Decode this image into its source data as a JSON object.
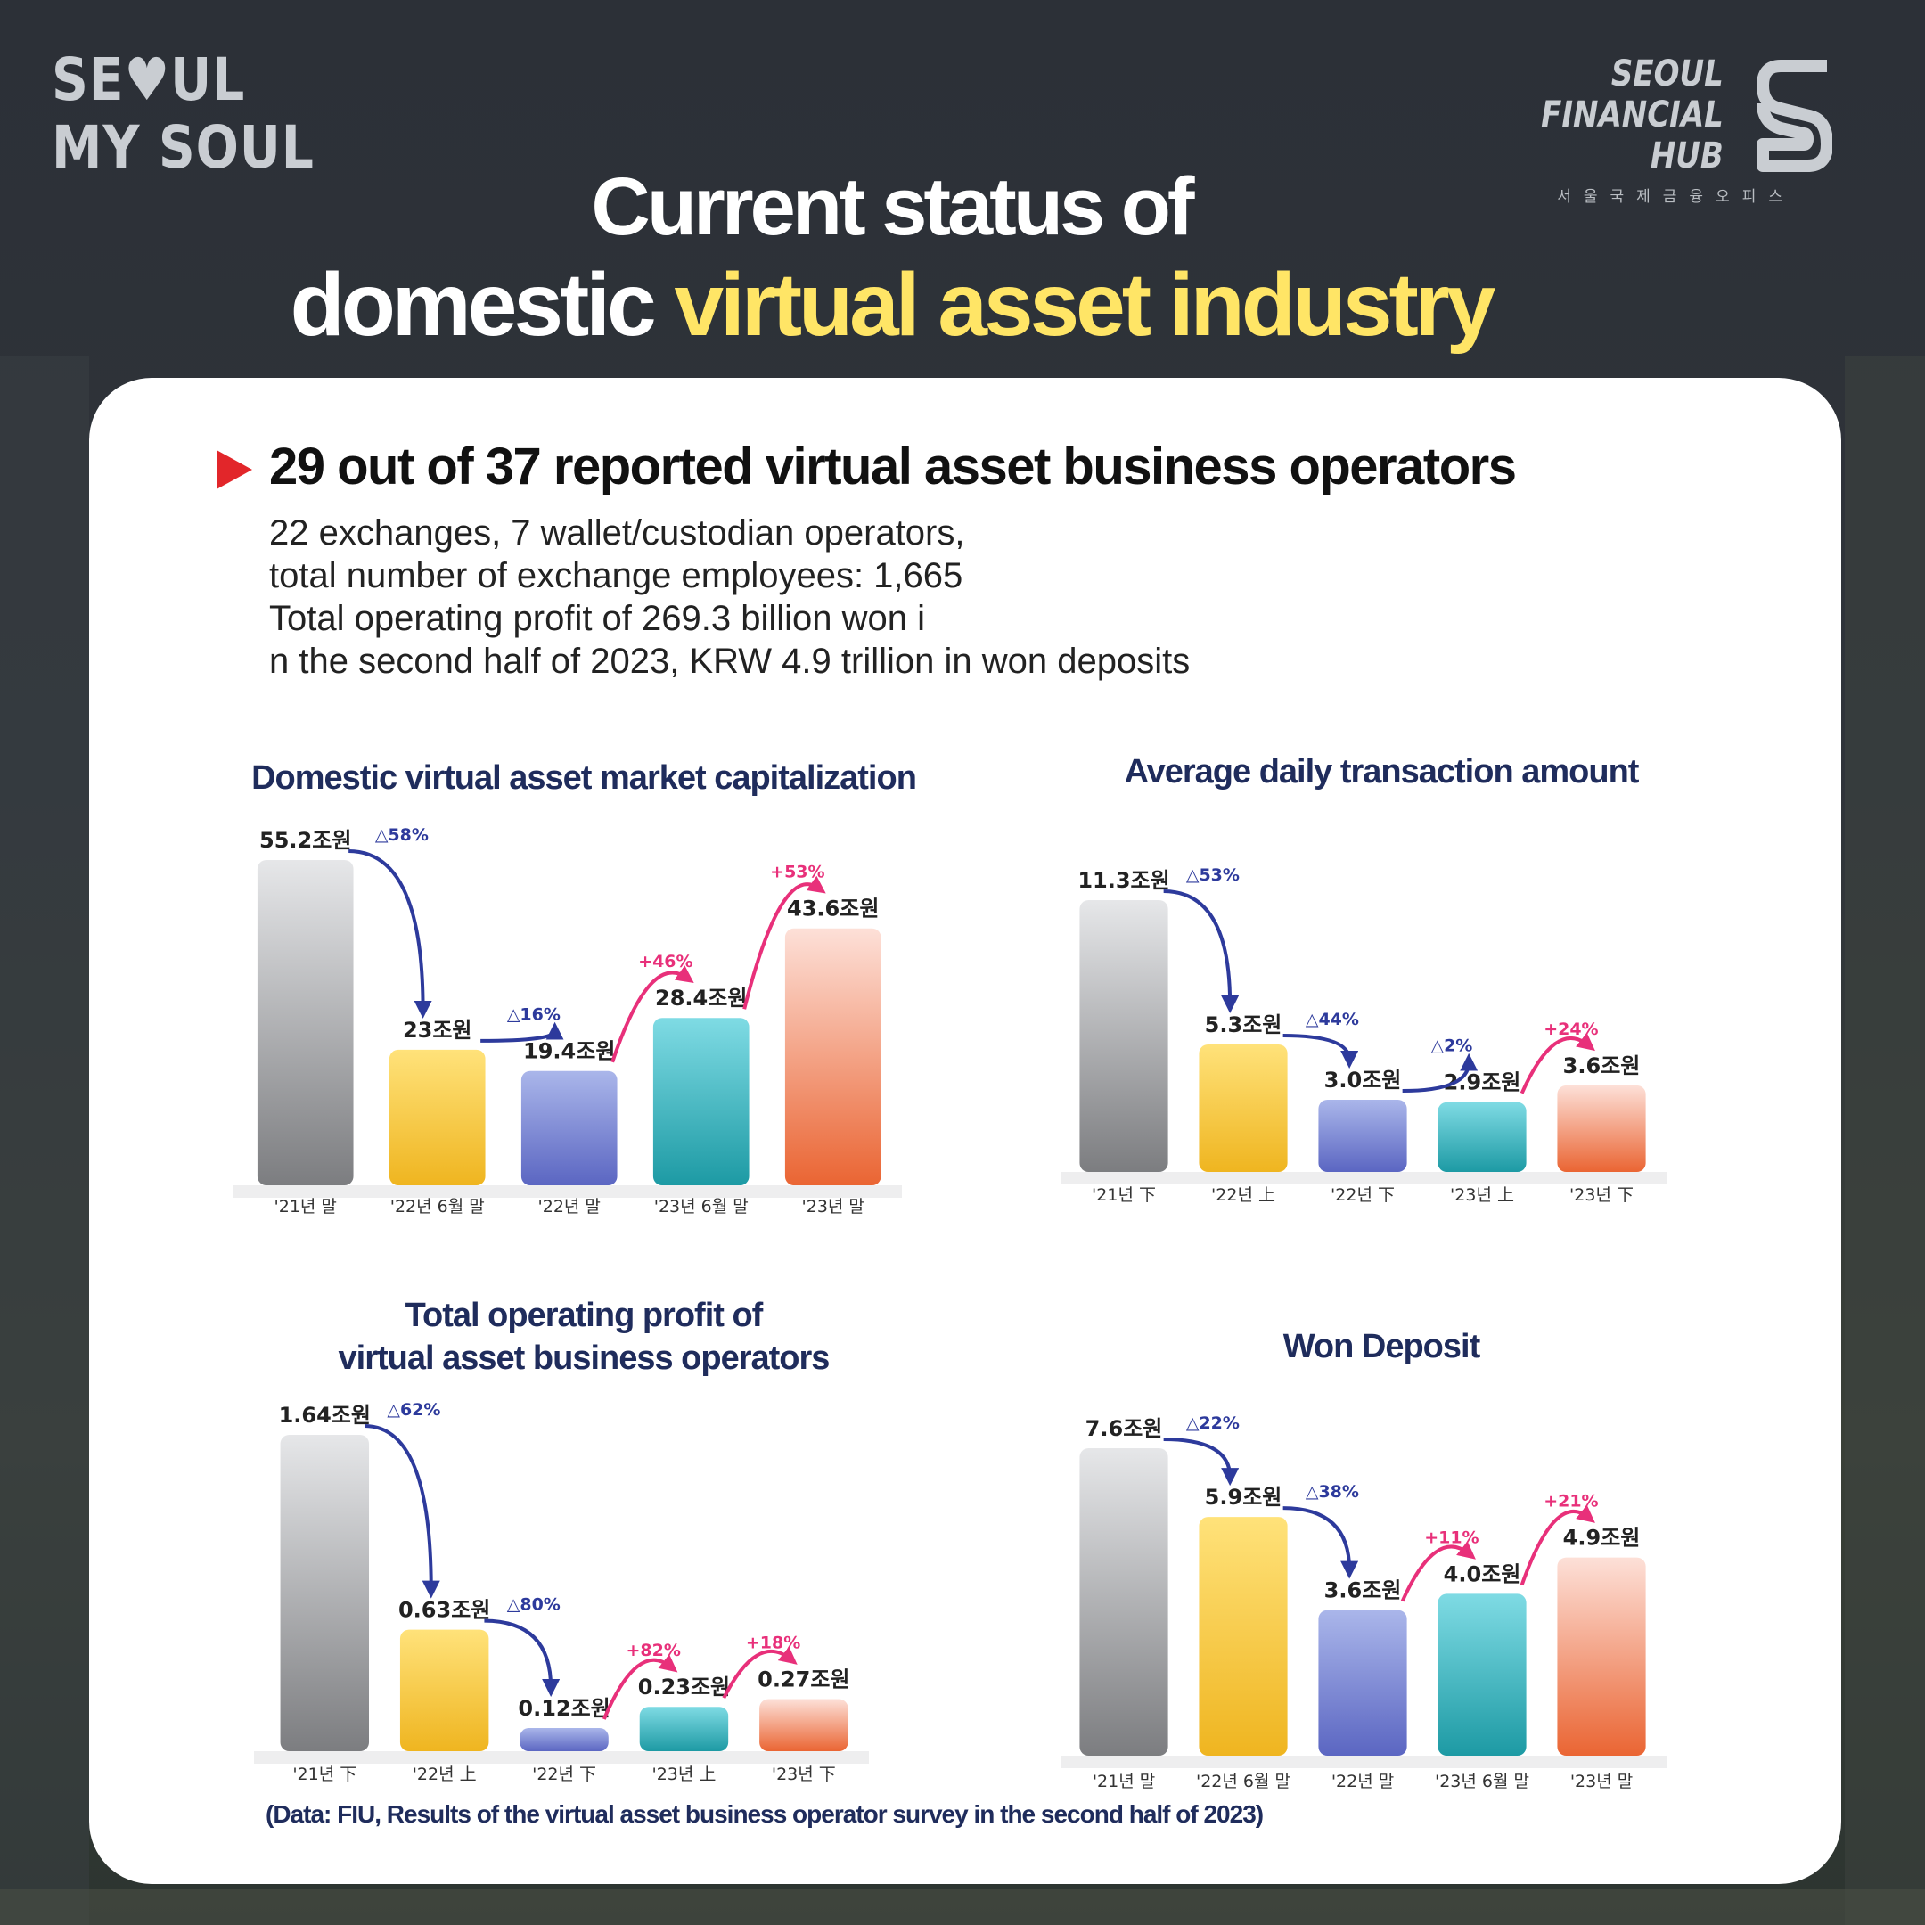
{
  "logo_left": {
    "line1": "SE♥UL",
    "line2": "MY SOUL"
  },
  "logo_right": {
    "line1": "SEOUL",
    "line2": "FINANCIAL",
    "line3": "HUB",
    "korean": "서울국제금융오피스"
  },
  "title": {
    "line1": "Current status of",
    "line2_plain": "domestic ",
    "line2_highlight": "virtual asset industry"
  },
  "headline": "29 out of 37 reported virtual asset business operators",
  "summary": [
    "22 exchanges, 7 wallet/custodian operators,",
    "total number of exchange employees: 1,665",
    "Total operating profit of 269.3 billion won i",
    "n the second half of 2023, KRW 4.9 trillion in won deposits"
  ],
  "source": "(Data: FIU, Results of the virtual asset business operator survey in the second half of 2023)",
  "colors": {
    "accent_yellow": "#ffe566",
    "navy": "#1f2c5c",
    "arrow_down": "#2d3a9c",
    "arrow_up": "#e8307a",
    "triangle": "#e2262a"
  },
  "chart_data": [
    {
      "type": "bar",
      "title": "Domestic virtual asset market capitalization",
      "categories": [
        "'21년 말",
        "'22년 6월 말",
        "'22년 말",
        "'23년 6월 말",
        "'23년 말"
      ],
      "values": [
        55.2,
        23,
        19.4,
        28.4,
        43.6
      ],
      "value_labels": [
        "55.2조원",
        "23조원",
        "19.4조원",
        "28.4조원",
        "43.6조원"
      ],
      "changes": [
        "△58%",
        "△16%",
        "+46%",
        "+53%"
      ],
      "ymax": 55.2
    },
    {
      "type": "bar",
      "title": "Average daily transaction amount",
      "categories": [
        "'21년 下",
        "'22년 上",
        "'22년 下",
        "'23년 上",
        "'23년 下"
      ],
      "values": [
        11.3,
        5.3,
        3.0,
        2.9,
        3.6
      ],
      "value_labels": [
        "11.3조원",
        "5.3조원",
        "3.0조원",
        "2.9조원",
        "3.6조원"
      ],
      "changes": [
        "△53%",
        "△44%",
        "△2%",
        "+24%"
      ],
      "ymax": 11.3
    },
    {
      "type": "bar",
      "title": "Total operating profit of virtual asset business operators",
      "title_lines": [
        "Total operating profit of",
        "virtual asset business operators"
      ],
      "categories": [
        "'21년 下",
        "'22년 上",
        "'22년 下",
        "'23년 上",
        "'23년 下"
      ],
      "values": [
        1.64,
        0.63,
        0.12,
        0.23,
        0.27
      ],
      "value_labels": [
        "1.64조원",
        "0.63조원",
        "0.12조원",
        "0.23조원",
        "0.27조원"
      ],
      "changes": [
        "△62%",
        "△80%",
        "+82%",
        "+18%"
      ],
      "ymax": 1.64
    },
    {
      "type": "bar",
      "title": "Won Deposit",
      "categories": [
        "'21년 말",
        "'22년 6월 말",
        "'22년 말",
        "'23년 6월 말",
        "'23년 말"
      ],
      "values": [
        7.6,
        5.9,
        3.6,
        4.0,
        4.9
      ],
      "value_labels": [
        "7.6조원",
        "5.9조원",
        "3.6조원",
        "4.0조원",
        "4.9조원"
      ],
      "changes": [
        "△22%",
        "△38%",
        "+11%",
        "+21%"
      ],
      "ymax": 7.6
    }
  ]
}
